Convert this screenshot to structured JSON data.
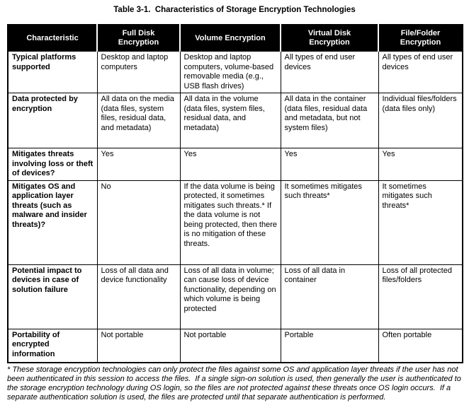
{
  "page": {
    "title": "Table 3-1.  Characteristics of Storage Encryption Technologies",
    "footnote": "* These storage encryption technologies can only protect the files against some OS and application layer threats if the user has not been authenticated in this session to access the files.  If a single sign-on solution is used, then generally the user is authenticated to the storage encryption technology during OS login, so the files are not protected against these threats once OS login occurs.  If a separate authentication solution is used, the files are protected until that separate authentication is performed."
  },
  "colors": {
    "header_bg": "#000000",
    "header_text": "#ffffff",
    "border": "#000000",
    "body_text": "#000000",
    "background": "#ffffff"
  },
  "table": {
    "headers": [
      "Characteristic",
      "Full Disk Encryption",
      "Volume Encryption",
      "Virtual Disk Encryption",
      "File/Folder Encryption"
    ],
    "rows": [
      {
        "label": "Typical platforms supported",
        "cells": [
          "Desktop and laptop computers",
          "Desktop and laptop computers, volume-based removable media (e.g., USB flash drives)",
          "All types of end user devices",
          "All types of end user devices"
        ]
      },
      {
        "label": "Data protected by encryption",
        "cells": [
          "All data on the media (data files, system files, residual data, and metadata)",
          "All data in the volume (data files, system files, residual data, and metadata)",
          "All data in the container (data files, residual data and metadata, but not system files)",
          "Individual files/folders (data files only)"
        ]
      },
      {
        "label": "Mitigates threats involving loss or theft of devices?",
        "cells": [
          "Yes",
          "Yes",
          "Yes",
          "Yes"
        ]
      },
      {
        "label": "Mitigates OS and application layer threats (such as malware and insider threats)?",
        "cells": [
          "No",
          "If the data volume is being protected, it sometimes mitigates such threats.* If the data volume is not being protected, then there is no mitigation of these threats.",
          "It sometimes mitigates such threats*",
          "It sometimes mitigates such threats*"
        ]
      },
      {
        "label": "Potential impact to devices in case of solution failure",
        "cells": [
          "Loss of all data and device functionality",
          "Loss of all data in volume; can cause loss of device functionality, depending on which volume is being protected",
          "Loss of all data in container",
          "Loss of all protected files/folders"
        ]
      },
      {
        "label": "Portability of encrypted information",
        "cells": [
          "Not portable",
          "Not portable",
          "Portable",
          "Often portable"
        ]
      }
    ]
  }
}
